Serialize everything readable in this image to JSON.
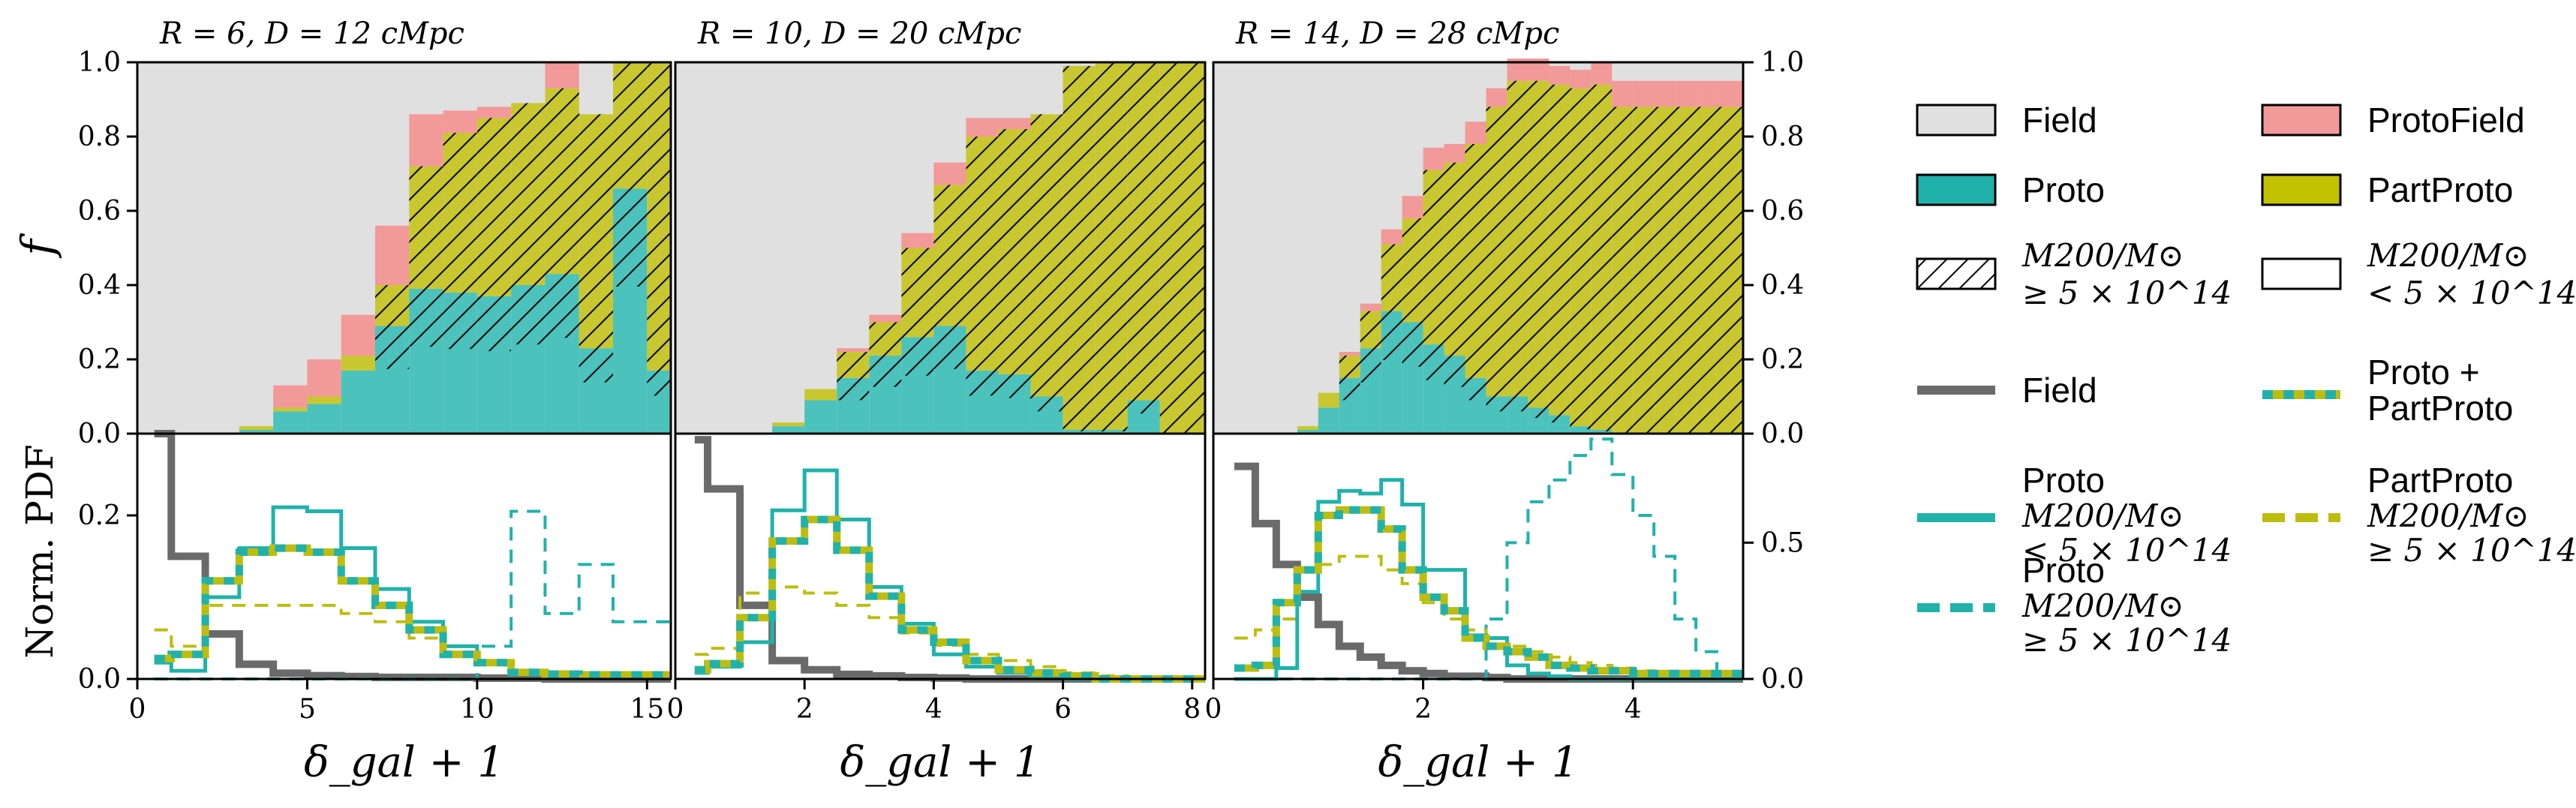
{
  "figure": {
    "ylabel_top": "f",
    "ylabel_bottom": "Norm. PDF",
    "xlabel": "δ_gal + 1"
  },
  "colors": {
    "field": "#e0e0e0",
    "proto": "#4cc2bc",
    "protofield": "#f29999",
    "partproto": "#c9c730",
    "field_line": "#6a6a6a",
    "proto_line": "#20b2aa",
    "partproto_line": "#bdbd10"
  },
  "legend": [
    {
      "kind": "patch",
      "fill": "#e0e0e0",
      "label": "Field"
    },
    {
      "kind": "patch",
      "fill": "#f29999",
      "label": "ProtoField"
    },
    {
      "kind": "patch",
      "fill": "#20b2aa",
      "label": "Proto"
    },
    {
      "kind": "patch",
      "fill": "#c2c200",
      "label": "PartProto"
    },
    {
      "kind": "hatch",
      "label": "M200/M⊙",
      "label2": "≥ 5 × 10^14"
    },
    {
      "kind": "empty",
      "label": "M200/M⊙",
      "label2": "< 5 × 10^14"
    },
    {
      "kind": "line",
      "color": "#6a6a6a",
      "label": "Field"
    },
    {
      "kind": "line2",
      "label": "Proto +",
      "label2": "PartProto"
    },
    {
      "kind": "line",
      "color": "#20b2aa",
      "label": "Proto",
      "label2": "M200/M⊙",
      "label3": "< 5 × 10^14"
    },
    {
      "kind": "dash",
      "color": "#bdbd10",
      "label": "PartProto",
      "label2": "M200/M⊙",
      "label3": "≥ 5 × 10^14)"
    },
    {
      "kind": "dash",
      "color": "#20b2aa",
      "label": "Proto",
      "label2": "M200/M⊙",
      "label3": "≥ 5 × 10^14"
    }
  ],
  "chart_data": [
    {
      "type": "area",
      "title": "R = 6, D = 12 cMpc",
      "xlim": [
        0,
        15.7
      ],
      "xticks": [
        0,
        5,
        10,
        15
      ],
      "ylim_top": [
        0,
        1
      ],
      "yticks_top": [
        0.0,
        0.2,
        0.4,
        0.6,
        0.8,
        1.0
      ],
      "ylim_bottom": [
        0,
        0.3
      ],
      "yticks_bottom": [
        0.0,
        0.2
      ],
      "bin_edges": [
        0.5,
        1,
        2,
        3,
        4,
        5,
        6,
        7,
        8,
        9,
        10,
        11,
        12,
        13,
        14,
        15,
        15.7
      ],
      "fractions": {
        "proto": [
          0,
          0,
          0,
          0.01,
          0.06,
          0.08,
          0.17,
          0.29,
          0.39,
          0.38,
          0.37,
          0.4,
          0.43,
          0.23,
          0.66,
          0.17
        ],
        "partproto": [
          0,
          0,
          0,
          0.01,
          0.01,
          0.02,
          0.04,
          0.11,
          0.33,
          0.43,
          0.48,
          0.49,
          0.5,
          0.63,
          0.34,
          0.83
        ],
        "protofield": [
          0,
          0,
          0,
          0,
          0.06,
          0.1,
          0.11,
          0.16,
          0.14,
          0.06,
          0.03,
          0,
          0.07,
          0,
          0,
          0
        ]
      },
      "pdf": {
        "field": [
          0.3,
          0.15,
          0.055,
          0.018,
          0.007,
          0.004,
          0.003,
          0.002,
          0.002,
          0.002,
          0.001,
          0.001,
          0,
          0,
          0,
          0
        ],
        "proto_lo": [
          0.02,
          0.01,
          0.1,
          0.16,
          0.21,
          0.205,
          0.16,
          0.11,
          0.07,
          0.04,
          0.02,
          0.01,
          0.005,
          0.005,
          0.005,
          0.005
        ],
        "proto_hi": [
          0,
          0,
          0,
          0,
          0,
          0,
          0,
          0,
          0,
          0,
          0.04,
          0.205,
          0.08,
          0.14,
          0.07,
          0.07
        ],
        "proto_plus": [
          0.025,
          0.03,
          0.12,
          0.155,
          0.16,
          0.155,
          0.12,
          0.09,
          0.06,
          0.03,
          0.02,
          0.008,
          0.006,
          0.005,
          0.005,
          0.005
        ],
        "partproto_hi": [
          0.06,
          0.04,
          0.09,
          0.09,
          0.09,
          0.09,
          0.08,
          0.07,
          0.05,
          0.03,
          0.02,
          0.01,
          0.008,
          0.005,
          0.005,
          0.005
        ]
      }
    },
    {
      "type": "area",
      "title": "R = 10, D = 20 cMpc",
      "xlim": [
        0,
        8.2
      ],
      "xticks": [
        0,
        2,
        4,
        6,
        8
      ],
      "ylim_top": [
        0,
        1
      ],
      "ylim_bottom": [
        0,
        0.8
      ],
      "bin_edges": [
        0.3,
        0.5,
        1,
        1.5,
        2,
        2.5,
        3,
        3.5,
        4,
        4.5,
        5,
        5.5,
        6,
        6.5,
        7,
        7.5,
        8.2
      ],
      "fractions": {
        "proto": [
          0,
          0,
          0,
          0.02,
          0.09,
          0.15,
          0.21,
          0.26,
          0.29,
          0.17,
          0.16,
          0.1,
          0.01,
          0.01,
          0.09,
          0
        ],
        "partproto": [
          0,
          0,
          0,
          0.01,
          0.03,
          0.07,
          0.09,
          0.24,
          0.38,
          0.63,
          0.66,
          0.76,
          0.98,
          0.99,
          0.91,
          1.0
        ],
        "protofield": [
          0,
          0,
          0,
          0,
          0,
          0.01,
          0.02,
          0.04,
          0.06,
          0.05,
          0.03,
          0,
          0,
          0,
          0,
          0
        ]
      },
      "pdf": {
        "field": [
          0.78,
          0.62,
          0.24,
          0.06,
          0.03,
          0.015,
          0.01,
          0.005,
          0.003,
          0,
          0,
          0,
          0,
          0,
          0,
          0
        ],
        "proto_lo": [
          0.02,
          0.04,
          0.12,
          0.55,
          0.68,
          0.52,
          0.3,
          0.18,
          0.08,
          0.04,
          0.02,
          0.01,
          0,
          0,
          0,
          0
        ],
        "proto_plus": [
          0.03,
          0.05,
          0.2,
          0.45,
          0.52,
          0.42,
          0.27,
          0.16,
          0.12,
          0.06,
          0.03,
          0.02,
          0.01,
          0,
          0,
          0
        ],
        "partproto_hi": [
          0.08,
          0.1,
          0.28,
          0.3,
          0.28,
          0.24,
          0.2,
          0.15,
          0.11,
          0.08,
          0.06,
          0.04,
          0.02,
          0.01,
          0.005,
          0
        ]
      }
    },
    {
      "type": "area",
      "title": "R = 14, D = 28 cMpc",
      "xlim": [
        0,
        5.05
      ],
      "xticks": [
        0,
        2,
        4
      ],
      "ylim_top": [
        0,
        1
      ],
      "yticks_top_right": [
        0.0,
        0.2,
        0.4,
        0.6,
        0.8,
        1.0
      ],
      "ylim_bottom": [
        0,
        0.9
      ],
      "yticks_bottom_right": [
        0.0,
        0.5
      ],
      "bin_edges": [
        0.2,
        0.4,
        0.6,
        0.8,
        1.0,
        1.2,
        1.4,
        1.6,
        1.8,
        2.0,
        2.2,
        2.4,
        2.6,
        2.8,
        3.0,
        3.2,
        3.4,
        3.6,
        3.8,
        4.0,
        4.2,
        4.4,
        4.6,
        4.8,
        5.05
      ],
      "fractions": {
        "proto": [
          0,
          0,
          0,
          0.01,
          0.07,
          0.15,
          0.23,
          0.33,
          0.3,
          0.24,
          0.21,
          0.15,
          0.1,
          0.1,
          0.07,
          0.05,
          0.02,
          0.01,
          0,
          0,
          0,
          0,
          0,
          0
        ],
        "partproto": [
          0,
          0,
          0,
          0.01,
          0.04,
          0.06,
          0.1,
          0.18,
          0.28,
          0.47,
          0.52,
          0.63,
          0.78,
          0.85,
          0.88,
          0.89,
          0.91,
          0.93,
          0.88,
          0.88,
          0.88,
          0.88,
          0.88,
          0.88
        ],
        "protofield": [
          0,
          0,
          0,
          0,
          0,
          0.01,
          0.02,
          0.04,
          0.06,
          0.06,
          0.05,
          0.06,
          0.05,
          0.06,
          0.06,
          0.05,
          0.05,
          0.06,
          0.07,
          0.07,
          0.07,
          0.07,
          0.07,
          0.07
        ]
      },
      "pdf": {
        "field": [
          0.78,
          0.57,
          0.42,
          0.3,
          0.2,
          0.12,
          0.08,
          0.05,
          0.03,
          0.02,
          0.01,
          0.01,
          0.005,
          0,
          0,
          0,
          0,
          0,
          0,
          0,
          0,
          0,
          0,
          0
        ],
        "proto_lo": [
          0,
          0,
          0.04,
          0.32,
          0.65,
          0.69,
          0.68,
          0.73,
          0.64,
          0.4,
          0.4,
          0.16,
          0.15,
          0.05,
          0.02,
          0.01,
          0,
          0,
          0,
          0,
          0,
          0,
          0,
          0
        ],
        "proto_hi": [
          0,
          0,
          0,
          0,
          0,
          0,
          0,
          0,
          0,
          0,
          0,
          0,
          0.22,
          0.5,
          0.65,
          0.73,
          0.82,
          0.88,
          0.75,
          0.6,
          0.45,
          0.22,
          0.1,
          0
        ],
        "proto_plus": [
          0.04,
          0.05,
          0.28,
          0.4,
          0.6,
          0.62,
          0.62,
          0.55,
          0.4,
          0.3,
          0.25,
          0.15,
          0.12,
          0.1,
          0.08,
          0.05,
          0.04,
          0.03,
          0.03,
          0.02,
          0.02,
          0.02,
          0.02,
          0.02
        ],
        "partproto_hi": [
          0.15,
          0.18,
          0.22,
          0.32,
          0.42,
          0.45,
          0.45,
          0.4,
          0.35,
          0.28,
          0.22,
          0.18,
          0.15,
          0.12,
          0.1,
          0.08,
          0.06,
          0.05,
          0.04,
          0.03,
          0.02,
          0.02,
          0.02,
          0.01
        ]
      }
    }
  ]
}
